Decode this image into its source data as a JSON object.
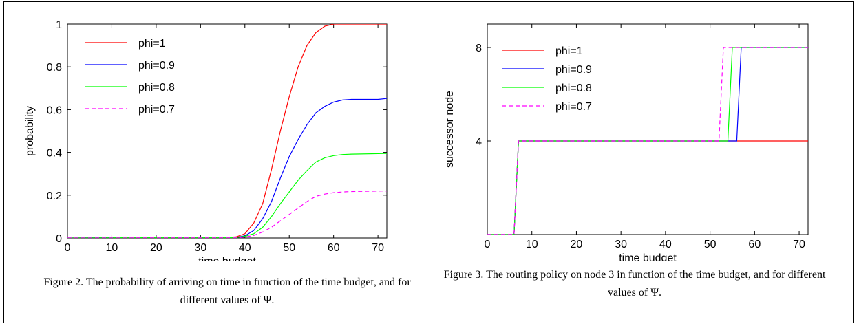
{
  "chart_data": [
    {
      "type": "line",
      "xlabel": "time budget",
      "ylabel": "probability",
      "xlim": [
        0,
        72
      ],
      "ylim": [
        0,
        1
      ],
      "xticks": [
        0,
        10,
        20,
        30,
        40,
        50,
        60,
        70
      ],
      "yticks": [
        0,
        0.2,
        0.4,
        0.6,
        0.8,
        1
      ],
      "ytick_labels": [
        "0",
        "0.2",
        "0.4",
        "0.6",
        "0.8",
        "1"
      ],
      "legend_position": "top-left",
      "grid": false,
      "series": [
        {
          "name": "phi=1",
          "color": "#ff0000",
          "dash": false,
          "x": [
            0,
            20,
            36,
            38,
            40,
            42,
            44,
            46,
            48,
            50,
            52,
            54,
            56,
            58,
            60,
            62,
            72
          ],
          "y": [
            0,
            0.002,
            0.003,
            0.005,
            0.02,
            0.07,
            0.16,
            0.32,
            0.5,
            0.66,
            0.8,
            0.9,
            0.96,
            0.99,
            1.0,
            1.0,
            1.0
          ]
        },
        {
          "name": "phi=0.9",
          "color": "#0000ff",
          "dash": false,
          "x": [
            0,
            20,
            38,
            40,
            42,
            44,
            46,
            48,
            50,
            52,
            54,
            56,
            58,
            60,
            62,
            64,
            70,
            72
          ],
          "y": [
            0,
            0.002,
            0.003,
            0.01,
            0.035,
            0.09,
            0.17,
            0.28,
            0.38,
            0.46,
            0.53,
            0.585,
            0.615,
            0.635,
            0.645,
            0.648,
            0.648,
            0.652
          ]
        },
        {
          "name": "phi=0.8",
          "color": "#00ff00",
          "dash": false,
          "x": [
            0,
            20,
            38,
            40,
            42,
            44,
            46,
            48,
            50,
            52,
            54,
            56,
            58,
            60,
            62,
            64,
            72
          ],
          "y": [
            0,
            0.002,
            0.002,
            0.008,
            0.02,
            0.05,
            0.1,
            0.16,
            0.215,
            0.27,
            0.315,
            0.355,
            0.375,
            0.385,
            0.39,
            0.392,
            0.395
          ]
        },
        {
          "name": "phi=0.7",
          "color": "#ff00ff",
          "dash": true,
          "x": [
            0,
            20,
            38,
            40,
            42,
            44,
            46,
            48,
            50,
            52,
            54,
            56,
            58,
            60,
            62,
            64,
            72
          ],
          "y": [
            0,
            0.001,
            0.001,
            0.004,
            0.012,
            0.028,
            0.05,
            0.08,
            0.11,
            0.14,
            0.17,
            0.195,
            0.205,
            0.212,
            0.215,
            0.217,
            0.22
          ]
        }
      ],
      "caption": "Figure 2. The probability of arriving on time in function of the time budget, and for different values of Ψ."
    },
    {
      "type": "line",
      "xlabel": "time budget",
      "ylabel": "successor node",
      "xlim": [
        0,
        72
      ],
      "ylim": [
        0,
        9
      ],
      "xticks": [
        0,
        10,
        20,
        30,
        40,
        50,
        60,
        70
      ],
      "yticks": [
        4,
        8
      ],
      "ytick_labels": [
        "4",
        "8"
      ],
      "legend_position": "top-left",
      "grid": false,
      "series": [
        {
          "name": "phi=1",
          "color": "#ff0000",
          "dash": false,
          "x": [
            0,
            6,
            7,
            72
          ],
          "y": [
            0,
            0,
            4,
            4
          ]
        },
        {
          "name": "phi=0.9",
          "color": "#0000ff",
          "dash": false,
          "x": [
            0,
            6,
            7,
            56,
            57,
            72
          ],
          "y": [
            0,
            0,
            4,
            4,
            8,
            8
          ]
        },
        {
          "name": "phi=0.8",
          "color": "#00ff00",
          "dash": false,
          "x": [
            0,
            6,
            7,
            54,
            55,
            72
          ],
          "y": [
            0,
            0,
            4,
            4,
            8,
            8
          ]
        },
        {
          "name": "phi=0.7",
          "color": "#ff00ff",
          "dash": true,
          "x": [
            0,
            6,
            7,
            52,
            53,
            72
          ],
          "y": [
            0,
            0,
            4,
            4,
            8,
            8
          ]
        }
      ],
      "caption": "Figure 3. The routing policy on node 3 in function of the time budget, and for different values of Ψ."
    }
  ]
}
